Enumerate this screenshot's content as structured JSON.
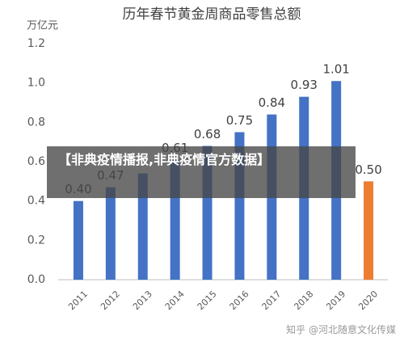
{
  "chart_data": {
    "type": "bar",
    "title": "历年春节黄金周商品零售总额",
    "y_unit": "万亿元",
    "categories": [
      "2011",
      "2012",
      "2013",
      "2014",
      "2015",
      "2016",
      "2017",
      "2018",
      "2019",
      "2020"
    ],
    "values": [
      0.4,
      0.47,
      0.54,
      0.61,
      0.68,
      0.75,
      0.84,
      0.93,
      1.01,
      0.5
    ],
    "value_labels": [
      "0.40",
      "0.47",
      null,
      "0.61",
      "0.68",
      "0.75",
      "0.84",
      "0.93",
      "1.01",
      "0.50"
    ],
    "colors": [
      "#4472c4",
      "#4472c4",
      "#4472c4",
      "#4472c4",
      "#4472c4",
      "#4472c4",
      "#4472c4",
      "#4472c4",
      "#4472c4",
      "#ed7d31"
    ],
    "ylim": [
      0,
      1.2
    ],
    "yticks": [
      {
        "value": 0,
        "label": "0.0"
      },
      0.2,
      0.4,
      0.6,
      0.8,
      {
        "value": 1,
        "label": "1.0"
      },
      1.2
    ],
    "grid": false
  },
  "overlay": {
    "banner": "【非典疫情播报,非典疫情官方数据】",
    "watermark": "知乎 @河北随意文化传媒"
  }
}
